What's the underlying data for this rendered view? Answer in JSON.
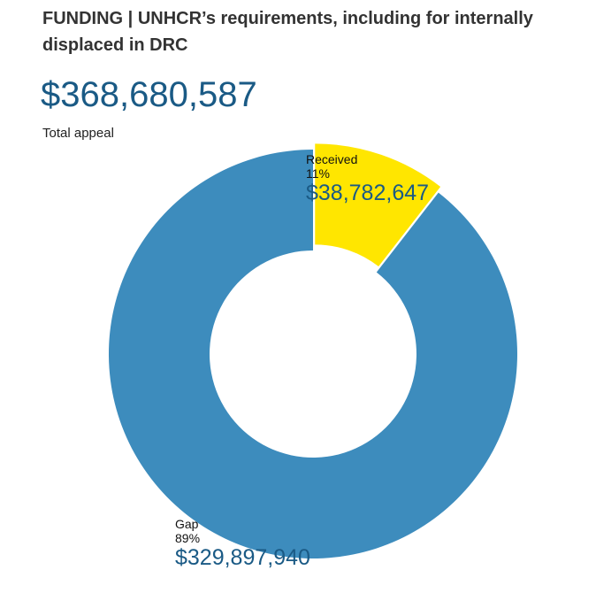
{
  "title": "FUNDING | UNHCR’s requirements, including for internally displaced in DRC",
  "total": {
    "value": "$368,680,587",
    "label": "Total appeal"
  },
  "chart_data": {
    "type": "pie",
    "title": "",
    "total": 368680587,
    "slices": [
      {
        "name": "Received",
        "value": 38782647,
        "percent": 11,
        "percent_label": "11%",
        "amount_label": "$38,782,647",
        "color": "#ffe600",
        "exploded": true
      },
      {
        "name": "Gap",
        "value": 329897940,
        "percent": 89,
        "percent_label": "89%",
        "amount_label": "$329,897,940",
        "color": "#3d8cbd",
        "exploded": false
      }
    ]
  },
  "colors": {
    "accent": "#1a5a85",
    "received": "#ffe600",
    "gap": "#3d8cbd"
  }
}
